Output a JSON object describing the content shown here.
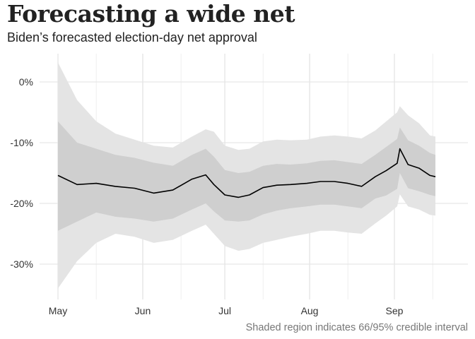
{
  "chart_data": {
    "type": "area",
    "title": "Forecasting a wide net",
    "subtitle": "Biden’s forecasted election-day net approval",
    "caption": "Shaded region indicates 66/95% credible interval",
    "xlabel": "",
    "ylabel": "",
    "x_ticks": [
      {
        "label": "May",
        "date": "2021-05-01"
      },
      {
        "label": "Jun",
        "date": "2021-06-01"
      },
      {
        "label": "Jul",
        "date": "2021-07-01"
      },
      {
        "label": "Aug",
        "date": "2021-08-01"
      },
      {
        "label": "Sep",
        "date": "2021-09-01"
      }
    ],
    "y_ticks": [
      0,
      -10,
      -20,
      -30
    ],
    "y_tick_labels": [
      "0%",
      "-10%",
      "-20%",
      "-30%"
    ],
    "ylim": [
      -36,
      4
    ],
    "xlim": [
      "2021-05-01",
      "2021-09-16"
    ],
    "grid": true,
    "colors": {
      "outer_band": "#e3e3e3",
      "inner_band": "#cfcfcf",
      "median_line": "#000000",
      "grid": "#e6e6e6"
    },
    "series": [
      {
        "key": "median",
        "x": [
          "2021-05-01",
          "2021-05-08",
          "2021-05-15",
          "2021-05-22",
          "2021-05-29",
          "2021-06-05",
          "2021-06-12",
          "2021-06-19",
          "2021-06-24",
          "2021-06-27",
          "2021-07-01",
          "2021-07-06",
          "2021-07-10",
          "2021-07-15",
          "2021-07-20",
          "2021-07-25",
          "2021-07-31",
          "2021-08-05",
          "2021-08-10",
          "2021-08-15",
          "2021-08-20",
          "2021-08-25",
          "2021-08-29",
          "2021-09-02",
          "2021-09-03",
          "2021-09-06",
          "2021-09-10",
          "2021-09-14",
          "2021-09-16"
        ],
        "values": [
          -15.4,
          -16.9,
          -16.7,
          -17.2,
          -17.5,
          -18.3,
          -17.8,
          -16.0,
          -15.3,
          -16.9,
          -18.6,
          -19.0,
          -18.6,
          -17.4,
          -17.0,
          -16.9,
          -16.7,
          -16.4,
          -16.4,
          -16.7,
          -17.2,
          -15.6,
          -14.6,
          -13.4,
          -11.0,
          -13.6,
          -14.2,
          -15.4,
          -15.6
        ]
      },
      {
        "key": "ci66_upper",
        "x": [
          "2021-05-01",
          "2021-05-08",
          "2021-05-15",
          "2021-05-22",
          "2021-05-29",
          "2021-06-05",
          "2021-06-12",
          "2021-06-19",
          "2021-06-24",
          "2021-06-27",
          "2021-07-01",
          "2021-07-06",
          "2021-07-10",
          "2021-07-15",
          "2021-07-20",
          "2021-07-25",
          "2021-07-31",
          "2021-08-05",
          "2021-08-10",
          "2021-08-15",
          "2021-08-20",
          "2021-08-25",
          "2021-08-29",
          "2021-09-02",
          "2021-09-03",
          "2021-09-06",
          "2021-09-10",
          "2021-09-14",
          "2021-09-16"
        ],
        "values": [
          -6.5,
          -10.0,
          -11.0,
          -12.0,
          -12.5,
          -13.3,
          -13.8,
          -12.0,
          -11.0,
          -12.3,
          -14.5,
          -15.0,
          -14.8,
          -13.8,
          -13.5,
          -13.6,
          -13.4,
          -13.0,
          -12.9,
          -13.2,
          -13.5,
          -12.0,
          -10.7,
          -9.4,
          -7.5,
          -9.6,
          -10.5,
          -11.7,
          -12.0
        ]
      },
      {
        "key": "ci66_lower",
        "x": [
          "2021-05-01",
          "2021-05-08",
          "2021-05-15",
          "2021-05-22",
          "2021-05-29",
          "2021-06-05",
          "2021-06-12",
          "2021-06-19",
          "2021-06-24",
          "2021-06-27",
          "2021-07-01",
          "2021-07-06",
          "2021-07-10",
          "2021-07-15",
          "2021-07-20",
          "2021-07-25",
          "2021-07-31",
          "2021-08-05",
          "2021-08-10",
          "2021-08-15",
          "2021-08-20",
          "2021-08-25",
          "2021-08-29",
          "2021-09-02",
          "2021-09-03",
          "2021-09-06",
          "2021-09-10",
          "2021-09-14",
          "2021-09-16"
        ],
        "values": [
          -24.5,
          -23.0,
          -21.5,
          -22.2,
          -22.5,
          -23.0,
          -22.5,
          -21.0,
          -20.0,
          -21.3,
          -22.8,
          -23.0,
          -22.8,
          -21.8,
          -21.2,
          -20.8,
          -20.5,
          -20.2,
          -20.2,
          -20.5,
          -20.8,
          -19.2,
          -18.7,
          -17.6,
          -15.0,
          -17.5,
          -18.0,
          -18.6,
          -18.8
        ]
      },
      {
        "key": "ci95_upper",
        "x": [
          "2021-05-01",
          "2021-05-08",
          "2021-05-15",
          "2021-05-22",
          "2021-05-29",
          "2021-06-05",
          "2021-06-12",
          "2021-06-19",
          "2021-06-24",
          "2021-06-27",
          "2021-07-01",
          "2021-07-06",
          "2021-07-10",
          "2021-07-15",
          "2021-07-20",
          "2021-07-25",
          "2021-07-31",
          "2021-08-05",
          "2021-08-10",
          "2021-08-15",
          "2021-08-20",
          "2021-08-25",
          "2021-08-29",
          "2021-09-02",
          "2021-09-03",
          "2021-09-06",
          "2021-09-10",
          "2021-09-14",
          "2021-09-16"
        ],
        "values": [
          3.2,
          -3.0,
          -6.5,
          -8.5,
          -9.5,
          -10.5,
          -10.8,
          -9.0,
          -7.8,
          -8.2,
          -10.5,
          -11.2,
          -11.0,
          -9.8,
          -9.5,
          -9.6,
          -9.5,
          -9.0,
          -8.8,
          -9.0,
          -9.3,
          -8.0,
          -6.5,
          -5.0,
          -4.0,
          -5.5,
          -6.8,
          -8.8,
          -9.0
        ]
      },
      {
        "key": "ci95_lower",
        "x": [
          "2021-05-01",
          "2021-05-08",
          "2021-05-15",
          "2021-05-22",
          "2021-05-29",
          "2021-06-05",
          "2021-06-12",
          "2021-06-19",
          "2021-06-24",
          "2021-06-27",
          "2021-07-01",
          "2021-07-06",
          "2021-07-10",
          "2021-07-15",
          "2021-07-20",
          "2021-07-25",
          "2021-07-31",
          "2021-08-05",
          "2021-08-10",
          "2021-08-15",
          "2021-08-20",
          "2021-08-25",
          "2021-08-29",
          "2021-09-02",
          "2021-09-03",
          "2021-09-06",
          "2021-09-10",
          "2021-09-14",
          "2021-09-16"
        ],
        "values": [
          -34.0,
          -29.5,
          -26.5,
          -25.0,
          -25.5,
          -26.5,
          -26.0,
          -24.5,
          -23.5,
          -25.0,
          -27.0,
          -27.8,
          -27.5,
          -26.5,
          -26.0,
          -25.5,
          -25.0,
          -24.5,
          -24.5,
          -24.8,
          -25.0,
          -23.3,
          -22.0,
          -20.5,
          -18.5,
          -20.5,
          -21.0,
          -21.9,
          -22.0
        ]
      }
    ]
  }
}
